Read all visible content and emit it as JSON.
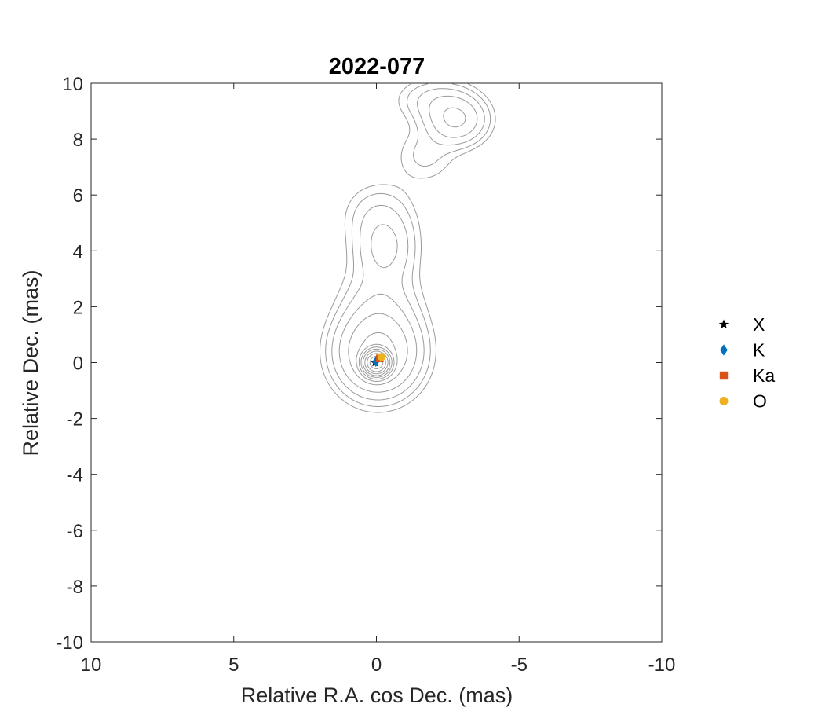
{
  "chart_data": {
    "type": "scatter",
    "title": "2022-077",
    "xlabel": "Relative R.A. cos Dec. (mas)",
    "ylabel": "Relative Dec. (mas)",
    "xlim": [
      10,
      -10
    ],
    "ylim": [
      -10,
      10
    ],
    "x_reversed": true,
    "xticks": [
      10,
      5,
      0,
      -5,
      -10
    ],
    "xtick_labels": [
      "10",
      "5",
      "0",
      "-5",
      "-10"
    ],
    "yticks": [
      10,
      8,
      6,
      4,
      2,
      0,
      -2,
      -4,
      -6,
      -8,
      -10
    ],
    "ytick_labels": [
      "10",
      "8",
      "6",
      "4",
      "2",
      "0",
      "-2",
      "-4",
      "-6",
      "-8",
      "-10"
    ],
    "grid": false,
    "legend_position": "outside-right",
    "series": [
      {
        "name": "X",
        "marker": "star",
        "color": "#000000",
        "points": [
          [
            0.05,
            0.0
          ]
        ]
      },
      {
        "name": "K",
        "marker": "diamond",
        "color": "#0072BD",
        "points": [
          [
            0.02,
            0.03
          ]
        ]
      },
      {
        "name": "Ka",
        "marker": "square",
        "color": "#D95319",
        "points": [
          [
            -0.12,
            0.15
          ]
        ]
      },
      {
        "name": "O",
        "marker": "circle",
        "color": "#EDB120",
        "points": [
          [
            -0.18,
            0.2
          ]
        ]
      }
    ],
    "contours": {
      "color": "#9a9a9a",
      "components": [
        {
          "ra": 0.0,
          "dec": 0.0,
          "levels": [
            0.35,
            0.6,
            1.0,
            1.5,
            2.0
          ]
        },
        {
          "ra": -0.15,
          "dec": 2.2,
          "levels": [
            1.2,
            1.5,
            1.8,
            2.0
          ]
        },
        {
          "ra": -0.3,
          "dec": 4.1,
          "levels": [
            0.35,
            1.0,
            1.4,
            1.7,
            1.95,
            2.15
          ]
        },
        {
          "ra": -3.0,
          "dec": 8.6,
          "levels": [
            0.5,
            1.2,
            1.6,
            1.95,
            2.2,
            2.4,
            2.6
          ]
        }
      ]
    }
  }
}
